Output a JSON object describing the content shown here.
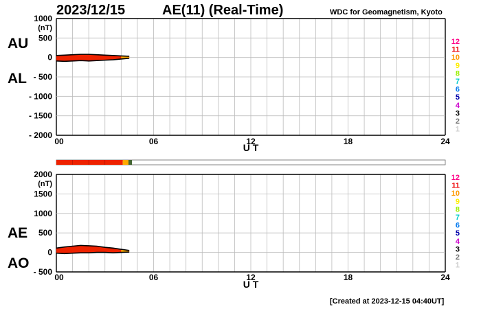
{
  "header": {
    "date": "2023/12/15",
    "title": "AE(11) (Real-Time)",
    "organization": "WDC for Geomagnetism, Kyoto"
  },
  "footer": {
    "created": "[Created at 2023-12-15 04:40UT]"
  },
  "colors": {
    "grid": "#bbbbbb",
    "fill_primary": "#ee2200",
    "fill_recent": "#ffaa00",
    "outline": "#000000",
    "bar_latest": "#446633"
  },
  "station_legend": {
    "labels": [
      "12",
      "11",
      "10",
      "9",
      "8",
      "7",
      "6",
      "5",
      "4",
      "3",
      "2",
      "1"
    ],
    "colors": [
      "#ff0088",
      "#ee0000",
      "#ff9900",
      "#ffee00",
      "#99ee00",
      "#00cccc",
      "#0077ee",
      "#0000aa",
      "#cc00cc",
      "#000000",
      "#777777",
      "#cccccc"
    ]
  },
  "station_count_bar": {
    "hours": [
      0,
      4.1,
      4.45,
      4.667,
      24
    ],
    "colors": [
      "#ee2200",
      "#ffaa00",
      "#446633"
    ],
    "end_label": ""
  },
  "chart_data": [
    {
      "type": "area",
      "panel": "top",
      "series_labels": [
        "AU",
        "AL"
      ],
      "ylabel": "(nT)",
      "ylim": [
        -2000,
        1000
      ],
      "yticks": [
        1000,
        500,
        0,
        -500,
        -1000,
        -1500,
        -2000
      ],
      "ytick_labels": [
        "1000",
        "500",
        "0",
        "- 500",
        "- 1000",
        "- 1500",
        "- 2000"
      ],
      "xlim": [
        0,
        24
      ],
      "xticks": [
        0,
        6,
        12,
        18,
        24
      ],
      "xtick_labels": [
        "00",
        "06",
        "12",
        "18",
        "24"
      ],
      "xlabel": "U T",
      "grid": true,
      "upper_series": {
        "name": "AU",
        "x": [
          0,
          0.5,
          1,
          1.5,
          2,
          2.5,
          3,
          3.5,
          4,
          4.5
        ],
        "y": [
          50,
          60,
          70,
          80,
          80,
          70,
          60,
          50,
          40,
          30
        ]
      },
      "lower_series": {
        "name": "AL",
        "x": [
          0,
          0.5,
          1,
          1.5,
          2,
          2.5,
          3,
          3.5,
          4,
          4.5
        ],
        "y": [
          -90,
          -100,
          -90,
          -80,
          -90,
          -80,
          -70,
          -60,
          -40,
          -20
        ]
      }
    },
    {
      "type": "area",
      "panel": "bottom",
      "series_labels": [
        "AE",
        "AO"
      ],
      "ylabel": "(nT)",
      "ylim": [
        -500,
        2000
      ],
      "yticks": [
        2000,
        1500,
        1000,
        500,
        0,
        -500
      ],
      "ytick_labels": [
        "2000",
        "1500",
        "1000",
        "500",
        "0",
        "- 500"
      ],
      "xlim": [
        0,
        24
      ],
      "xticks": [
        0,
        6,
        12,
        18,
        24
      ],
      "xtick_labels": [
        "00",
        "06",
        "12",
        "18",
        "24"
      ],
      "xlabel": "U T",
      "grid": true,
      "upper_series": {
        "name": "AE",
        "x": [
          0,
          0.5,
          1,
          1.5,
          2,
          2.5,
          3,
          3.5,
          4,
          4.5
        ],
        "y": [
          110,
          140,
          160,
          180,
          170,
          160,
          130,
          110,
          80,
          50
        ]
      },
      "lower_series": {
        "name": "AO",
        "x": [
          0,
          0.5,
          1,
          1.5,
          2,
          2.5,
          3,
          3.5,
          4,
          4.5
        ],
        "y": [
          -20,
          -30,
          -20,
          -10,
          -10,
          0,
          0,
          -10,
          0,
          10
        ]
      }
    }
  ]
}
